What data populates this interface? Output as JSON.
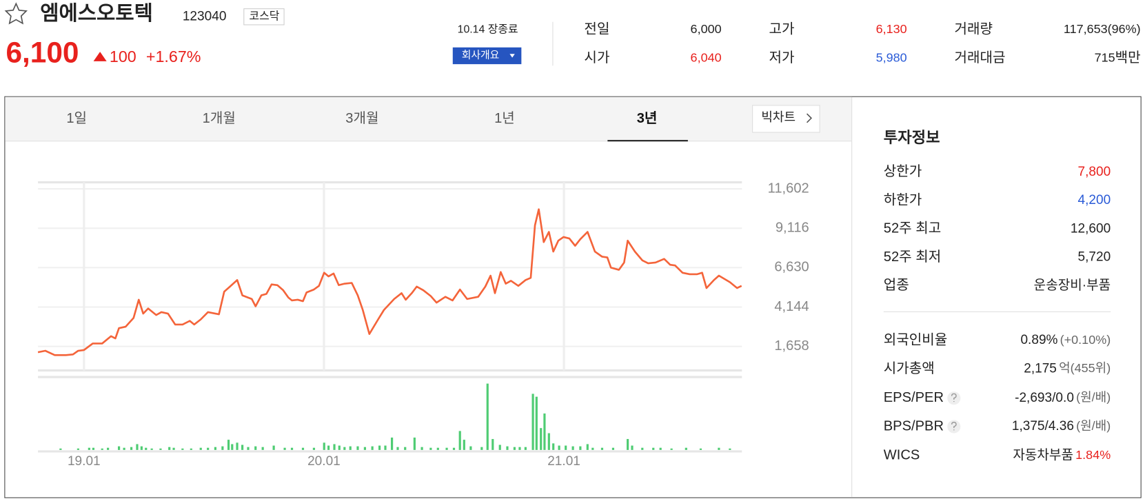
{
  "header": {
    "name": "엠에스오토텍",
    "code": "123040",
    "market": "코스닥",
    "price": "6,100",
    "change": "100",
    "change_pct": "+1.67%",
    "color": "#e8211d",
    "status": "10.14 장종료",
    "company_button": "회사개요"
  },
  "summary": [
    {
      "label": "전일",
      "value": "6,000",
      "color": "#222"
    },
    {
      "label": "시가",
      "value": "6,040",
      "color": "#e8211d"
    },
    {
      "label": "고가",
      "value": "6,130",
      "color": "#e8211d"
    },
    {
      "label": "저가",
      "value": "5,980",
      "color": "#2a5bd7"
    },
    {
      "label": "거래량",
      "value": "117,653(96%)",
      "color": "#222"
    },
    {
      "label": "거래대금",
      "value": "715",
      "unit": "백만",
      "color": "#222"
    }
  ],
  "tabs": [
    "1일",
    "1개월",
    "3개월",
    "1년",
    "3년"
  ],
  "big_chart": "빅차트",
  "invest": {
    "title": "투자정보",
    "group1": [
      {
        "label": "상한가",
        "value": "7,800",
        "color": "#e8211d"
      },
      {
        "label": "하한가",
        "value": "4,200",
        "color": "#2a5bd7"
      },
      {
        "label": "52주 최고",
        "value": "12,600",
        "color": "#222"
      },
      {
        "label": "52주 최저",
        "value": "5,720",
        "color": "#222"
      },
      {
        "label": "업종",
        "value": "운송장비·부품",
        "color": "#222"
      }
    ],
    "group2": [
      {
        "label": "외국인비율",
        "value": "0.89%",
        "note": "(+0.10%)",
        "color": "#222",
        "note_color": "#666"
      },
      {
        "label": "시가총액",
        "value": "2,175",
        "note": "억(455위)",
        "color": "#222",
        "note_color": "#666"
      },
      {
        "label": "EPS/PER",
        "value": "-2,693/0.0",
        "note": "(원/배)",
        "help": true,
        "color": "#222",
        "note_color": "#666"
      },
      {
        "label": "BPS/PBR",
        "value": "1,375/4.36",
        "note": "(원/배)",
        "help": true,
        "color": "#222",
        "note_color": "#666"
      },
      {
        "label": "WICS",
        "value": "자동차부품",
        "note": "1.84%",
        "color": "#222",
        "note_color": "#e8211d"
      }
    ]
  },
  "chart_data": [
    {
      "type": "line",
      "color": "#f4643a",
      "grid": true,
      "xlim": [
        -2.3,
        32.9
      ],
      "ylim": [
        139,
        12016
      ],
      "xticks": [
        {
          "value": 0,
          "label": "19.01"
        },
        {
          "value": 12,
          "label": "20.01"
        },
        {
          "value": 24,
          "label": "21.01"
        }
      ],
      "yticks": [
        {
          "value": 11602,
          "label": "11,602"
        },
        {
          "value": 9116,
          "label": "9,116"
        },
        {
          "value": 6630,
          "label": "6,630"
        },
        {
          "value": 4144,
          "label": "4,144"
        },
        {
          "value": 1658,
          "label": "1,658"
        }
      ],
      "x": [
        -2.3,
        -1.93,
        -1.46,
        -0.91,
        -0.55,
        -0.29,
        0,
        0.44,
        0.91,
        1.35,
        1.57,
        1.75,
        2.08,
        2.48,
        2.74,
        2.96,
        3.21,
        3.61,
        3.87,
        4.2,
        4.56,
        4.93,
        5.29,
        5.51,
        5.84,
        6.2,
        6.75,
        7.01,
        7.3,
        7.66,
        7.92,
        8.39,
        8.58,
        8.87,
        9.12,
        9.38,
        9.67,
        9.96,
        10.22,
        10.4,
        10.69,
        10.95,
        11.13,
        11.5,
        11.75,
        12.01,
        12.23,
        12.48,
        12.74,
        13.03,
        13.39,
        13.69,
        13.94,
        14.27,
        14.71,
        15,
        15.51,
        15.88,
        16.09,
        16.39,
        16.64,
        16.97,
        17.34,
        17.63,
        18.07,
        18.43,
        18.8,
        19.16,
        19.71,
        20.07,
        20.33,
        20.55,
        20.84,
        21.09,
        21.35,
        21.72,
        22.08,
        22.34,
        22.55,
        22.74,
        22.99,
        23.25,
        23.47,
        23.72,
        23.98,
        24.27,
        24.56,
        24.82,
        25.18,
        25.55,
        25.91,
        26.17,
        26.35,
        26.75,
        27.01,
        27.19,
        27.55,
        27.92,
        28.21,
        28.58,
        29.01,
        29.31,
        29.56,
        29.93,
        30.29,
        30.66,
        30.91,
        31.13,
        31.5,
        31.75,
        32.3,
        32.66,
        32.88
      ],
      "values": [
        1289,
        1381,
        1105,
        1105,
        1151,
        1381,
        1427,
        1842,
        1842,
        2302,
        2164,
        2808,
        2900,
        3453,
        4604,
        3729,
        4051,
        3637,
        3821,
        3729,
        3039,
        3039,
        3269,
        3039,
        3361,
        3821,
        3683,
        5110,
        5433,
        5847,
        4880,
        4650,
        4190,
        4880,
        4972,
        5571,
        5525,
        5202,
        4742,
        4558,
        4604,
        4512,
        5064,
        5248,
        5479,
        6307,
        6077,
        6261,
        5525,
        5617,
        5663,
        4880,
        3959,
        2440,
        3361,
        3959,
        4650,
        5018,
        4604,
        5018,
        5433,
        5202,
        4834,
        4420,
        4788,
        4558,
        5248,
        4650,
        4788,
        5433,
        6123,
        5018,
        6353,
        5617,
        5801,
        5479,
        5847,
        5985,
        9300,
        10313,
        8241,
        8886,
        7643,
        8333,
        8563,
        8471,
        8011,
        8425,
        8886,
        7643,
        7320,
        7274,
        6630,
        6492,
        6952,
        8333,
        7643,
        7090,
        6906,
        6952,
        7182,
        6814,
        6768,
        6307,
        6215,
        6215,
        6307,
        5341,
        5847,
        6123,
        5709,
        5341,
        5479
      ]
    },
    {
      "type": "bar",
      "color": "#4fcc73",
      "xlim": [
        -2.3,
        32.9
      ],
      "ylim": [
        0,
        100
      ],
      "x": [
        -1.17,
        -0.29,
        0.26,
        0.47,
        0.91,
        1.2,
        1.75,
        2.01,
        2.37,
        2.66,
        2.88,
        3.1,
        3.39,
        3.83,
        4.27,
        4.49,
        4.93,
        5.36,
        5.84,
        6.2,
        6.57,
        6.93,
        7.23,
        7.41,
        7.66,
        7.92,
        8.21,
        8.58,
        8.94,
        9.49,
        10.04,
        10.4,
        10.95,
        11.5,
        12.01,
        12.23,
        12.52,
        12.77,
        13.03,
        13.32,
        13.69,
        14.05,
        14.42,
        14.78,
        15.07,
        15.4,
        15.69,
        16.06,
        16.53,
        16.9,
        17.34,
        17.7,
        18.14,
        18.5,
        18.8,
        19.01,
        19.34,
        19.89,
        20.18,
        20.44,
        20.8,
        21.17,
        21.53,
        21.79,
        22.08,
        22.45,
        22.63,
        22.85,
        23.03,
        23.25,
        23.47,
        23.76,
        24.09,
        24.45,
        24.82,
        25.18,
        25.44,
        25.91,
        26.46,
        27.19,
        27.41,
        27.92,
        28.47,
        28.83,
        29.38,
        30.11,
        30.84,
        31.75,
        32.3
      ],
      "values": [
        2,
        2,
        3,
        3,
        2,
        3,
        5,
        3,
        4,
        8,
        5,
        3,
        2,
        2,
        4,
        3,
        2,
        2,
        3,
        3,
        4,
        5,
        14,
        8,
        10,
        7,
        4,
        5,
        4,
        6,
        3,
        3,
        3,
        3,
        10,
        6,
        8,
        6,
        4,
        5,
        5,
        4,
        5,
        6,
        6,
        17,
        4,
        4,
        17,
        4,
        3,
        3,
        3,
        3,
        26,
        14,
        5,
        4,
        91,
        15,
        7,
        5,
        4,
        4,
        4,
        77,
        73,
        30,
        50,
        23,
        9,
        6,
        6,
        5,
        5,
        8,
        3,
        3,
        3,
        15,
        6,
        3,
        3,
        3,
        2,
        3,
        2,
        3,
        2
      ]
    }
  ]
}
